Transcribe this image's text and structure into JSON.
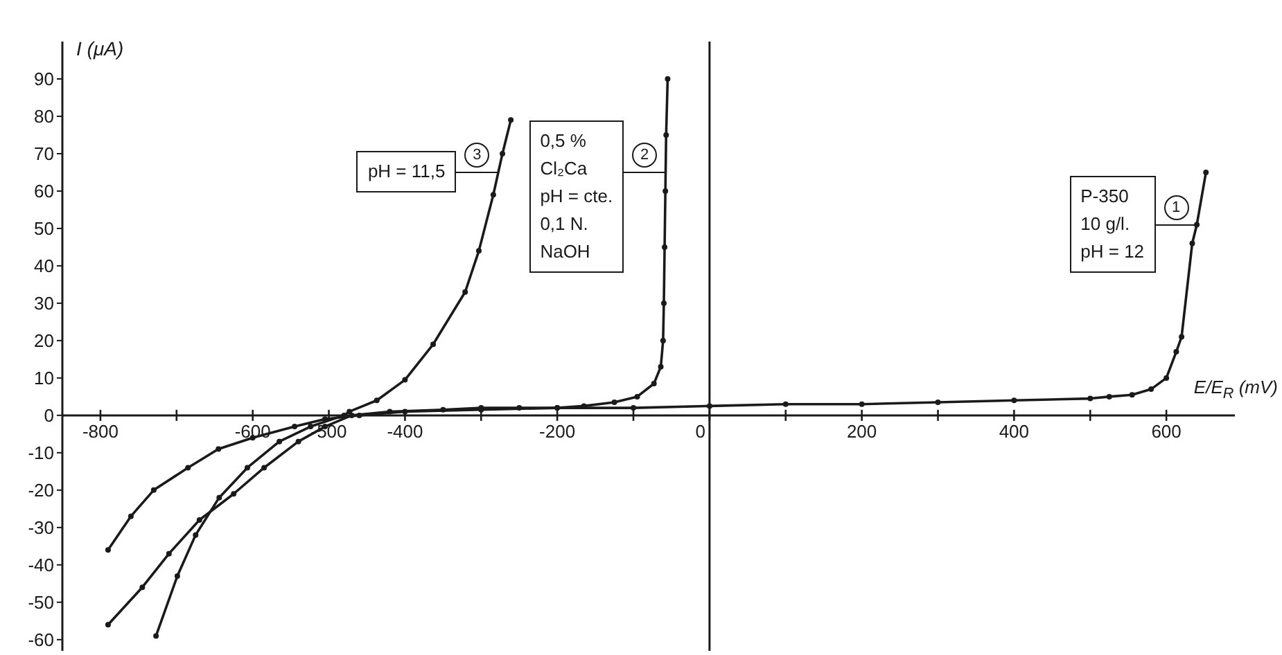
{
  "chart_data": {
    "type": "line",
    "xlabel": "E/E$_{R}$ (mV)",
    "ylabel": "I (μA)",
    "xlim": [
      -850,
      690
    ],
    "ylim": [
      -63,
      100
    ],
    "xticks": [
      -800,
      {
        "value": -700,
        "label": null
      },
      -600,
      -500,
      -400,
      {
        "value": -300,
        "label": null
      },
      -200,
      {
        "value": -100,
        "label": null
      },
      0,
      {
        "value": 100,
        "label": null
      },
      200,
      {
        "value": 300,
        "label": null
      },
      400,
      {
        "value": 500,
        "label": null
      },
      600
    ],
    "yticks": [
      -60,
      -50,
      -40,
      -30,
      -20,
      -10,
      0,
      10,
      20,
      30,
      40,
      50,
      60,
      70,
      80,
      90
    ],
    "marker": "circle",
    "line_style": "solid",
    "ref_lines": [
      {
        "axis": "x",
        "value": 0
      }
    ],
    "series": [
      {
        "name": "1",
        "color": "#1a1a1a",
        "x": [
          -790,
          -760,
          -730,
          -685,
          -645,
          -600,
          -545,
          -505,
          -460,
          -400,
          -300,
          -200,
          -100,
          0,
          100,
          200,
          300,
          400,
          500,
          525,
          555,
          580,
          600,
          613,
          620,
          634,
          640,
          652
        ],
        "values": [
          -36,
          -27,
          -20,
          -14,
          -9,
          -6,
          -3,
          -1,
          0,
          1,
          1.5,
          2,
          2,
          2.5,
          3,
          3,
          3.5,
          4,
          4.5,
          5,
          5.5,
          7,
          10,
          17,
          21,
          46,
          51,
          65
        ]
      },
      {
        "name": "2",
        "color": "#1a1a1a",
        "x": [
          -790,
          -745,
          -710,
          -670,
          -625,
          -585,
          -540,
          -505,
          -470,
          -420,
          -350,
          -300,
          -250,
          -200,
          -165,
          -125,
          -95,
          -73,
          -64,
          -61,
          -60,
          -59,
          -58,
          -57,
          -55
        ],
        "values": [
          -56,
          -46,
          -37,
          -28,
          -21,
          -14,
          -7,
          -3,
          0,
          1,
          1.5,
          2,
          2,
          2,
          2.5,
          3.5,
          5,
          8.5,
          13,
          20,
          30,
          45,
          60,
          75,
          90
        ]
      },
      {
        "name": "3",
        "color": "#1a1a1a",
        "x": [
          -727,
          -699,
          -675,
          -644,
          -607,
          -565,
          -524,
          -480,
          -473,
          -437,
          -400,
          -363,
          -321,
          -303,
          -284,
          -272,
          -261
        ],
        "values": [
          -59,
          -43,
          -32,
          -22,
          -14,
          -7,
          -3,
          0,
          1,
          4,
          9.5,
          19,
          33,
          44,
          59,
          70,
          79
        ]
      }
    ],
    "annotations": [
      {
        "text": "P-350\n10 g/l.\npH = 12",
        "x": 640,
        "y": 51
      },
      {
        "text": "0,5 %\nCl₂Ca\npH = cte.\n0,1 N.\nNaOH",
        "x": -58,
        "y": 65
      },
      {
        "text": "pH = 11,5",
        "x": -278,
        "y": 65
      }
    ]
  }
}
